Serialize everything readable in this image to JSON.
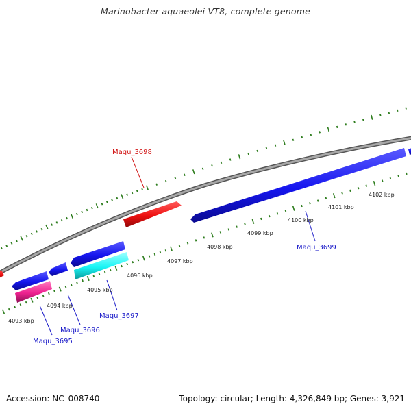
{
  "title": "Marinobacter aquaeolei VT8, complete genome",
  "footer": {
    "accession": "Accession: NC_008740",
    "summary": "Topology: circular; Length: 4,326,849 bp; Genes: 3,921"
  },
  "colors": {
    "backbone": "#8c8c8c",
    "tick": "#2e7d1e",
    "forward_gene": "#1515ee",
    "reverse_gene": "#ee1111",
    "cyan_gene": "#19f5f5",
    "magenta_gene": "#ee2290",
    "label_blue": "#1a1ac8",
    "label_red": "#d01010"
  },
  "scale_labels": [
    "4093 kbp",
    "4094 kbp",
    "4095 kbp",
    "4096 kbp",
    "4097 kbp",
    "4098 kbp",
    "4099 kbp",
    "4100 kbp",
    "4101 kbp",
    "4102 kbp"
  ],
  "gene_labels": [
    {
      "id": "Maqu_3698",
      "color": "red"
    },
    {
      "id": "Maqu_3699",
      "color": "blue"
    },
    {
      "id": "Maqu_3697",
      "color": "blue"
    },
    {
      "id": "Maqu_3696",
      "color": "blue"
    },
    {
      "id": "Maqu_3695",
      "color": "blue"
    }
  ]
}
